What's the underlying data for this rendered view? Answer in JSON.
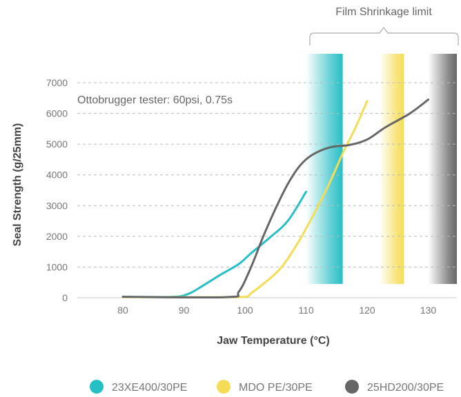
{
  "chart_data": {
    "type": "line",
    "annotation": "Ottobrugger tester: 60psi, 0.75s",
    "limit_label": "Film Shrinkage limit",
    "xlabel": "Jaw Temperature (°C)",
    "ylabel": "Seal Strength (g/25mm)",
    "xlim": [
      73,
      135
    ],
    "ylim": [
      0,
      7000
    ],
    "x_ticks": [
      80,
      90,
      100,
      110,
      120,
      130
    ],
    "y_ticks": [
      0,
      1000,
      2000,
      3000,
      4000,
      5000,
      6000,
      7000
    ],
    "grid": "horizontal dashed",
    "legend_position": "bottom",
    "series": [
      {
        "name": "23XE400/30PE",
        "color": "#27bfc6",
        "shrink_band": [
          110,
          116
        ],
        "points": [
          [
            80,
            30
          ],
          [
            85,
            25
          ],
          [
            89,
            40
          ],
          [
            91,
            150
          ],
          [
            93,
            380
          ],
          [
            96,
            750
          ],
          [
            99,
            1100
          ],
          [
            101,
            1450
          ],
          [
            104,
            1950
          ],
          [
            107,
            2500
          ],
          [
            110,
            3450
          ]
        ]
      },
      {
        "name": "MDO PE/30PE",
        "color": "#f5dc56",
        "shrink_band": [
          122,
          126
        ],
        "points": [
          [
            80,
            20
          ],
          [
            95,
            20
          ],
          [
            100,
            30
          ],
          [
            101,
            150
          ],
          [
            103,
            450
          ],
          [
            106,
            1000
          ],
          [
            109,
            1900
          ],
          [
            112,
            3000
          ],
          [
            114,
            3800
          ],
          [
            116,
            4700
          ],
          [
            118,
            5500
          ],
          [
            120,
            6400
          ]
        ]
      },
      {
        "name": "25HD200/30PE",
        "color": "#666666",
        "shrink_band": [
          130,
          135
        ],
        "points": [
          [
            80,
            30
          ],
          [
            97,
            20
          ],
          [
            99,
            200
          ],
          [
            101,
            1000
          ],
          [
            103,
            2000
          ],
          [
            105,
            2900
          ],
          [
            107,
            3700
          ],
          [
            109,
            4300
          ],
          [
            111,
            4650
          ],
          [
            114,
            4900
          ],
          [
            117,
            4970
          ],
          [
            120,
            5150
          ],
          [
            123,
            5550
          ],
          [
            127,
            6000
          ],
          [
            130,
            6450
          ]
        ]
      }
    ]
  }
}
